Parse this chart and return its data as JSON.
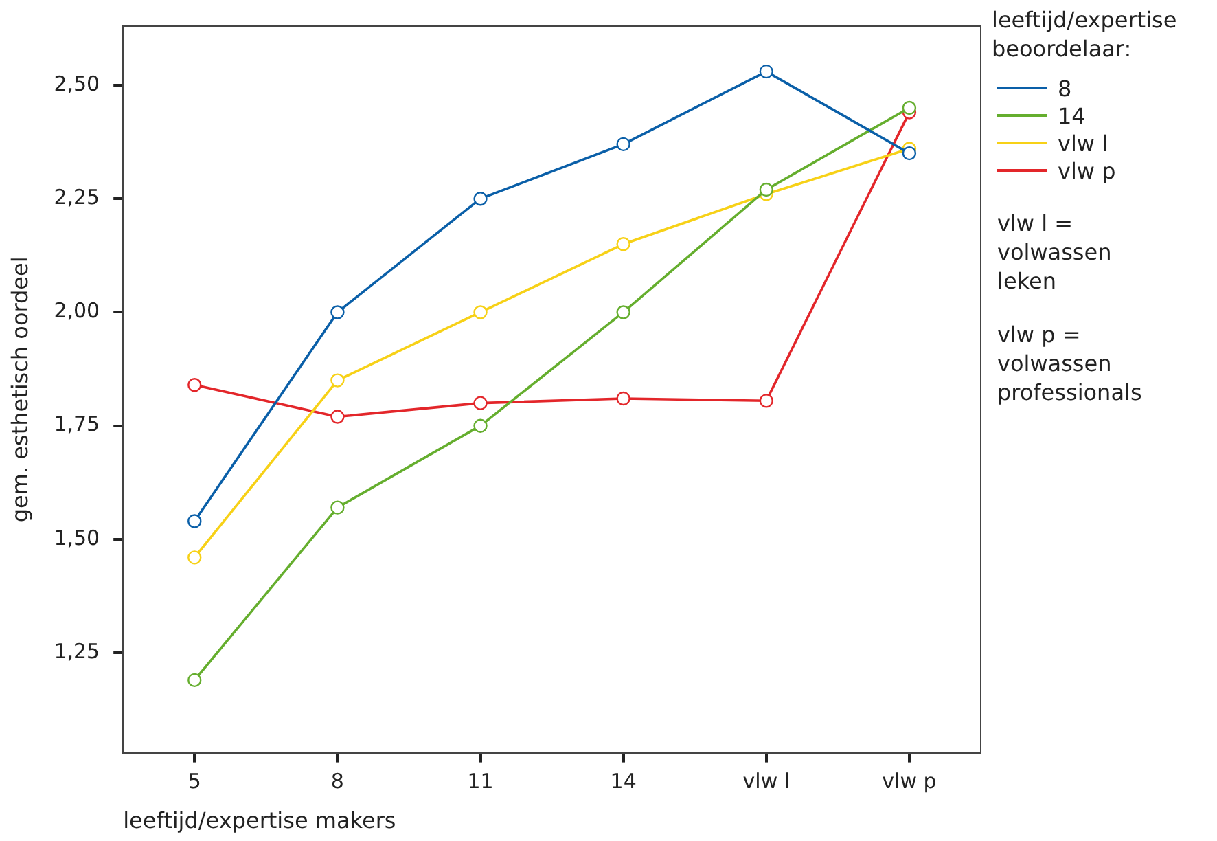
{
  "chart_data": {
    "type": "line",
    "xlabel": "leeftijd/expertise makers",
    "ylabel": "gem. esthetisch oordeel",
    "legend_title": "leeftijd/expertise beoordelaar:",
    "categories": [
      "5",
      "8",
      "11",
      "14",
      "vlw l",
      "vlw p"
    ],
    "series": [
      {
        "name": "8",
        "color": "#0a5fa8",
        "values": [
          1.54,
          2.0,
          2.25,
          2.37,
          2.53,
          2.35
        ]
      },
      {
        "name": "14",
        "color": "#65ae2e",
        "values": [
          1.19,
          1.57,
          1.75,
          2.0,
          2.27,
          2.45
        ]
      },
      {
        "name": "vlw l",
        "color": "#f7d117",
        "values": [
          1.46,
          1.85,
          2.0,
          2.15,
          2.26,
          2.36
        ]
      },
      {
        "name": "vlw p",
        "color": "#e3262a",
        "values": [
          1.84,
          1.77,
          1.8,
          1.81,
          1.805,
          2.44
        ]
      }
    ],
    "ylim": [
      1.03,
      2.63
    ],
    "yticks": [
      {
        "value": 1.25,
        "label": "1,25"
      },
      {
        "value": 1.5,
        "label": "1,50"
      },
      {
        "value": 1.75,
        "label": "1,75"
      },
      {
        "value": 2.0,
        "label": "2,00"
      },
      {
        "value": 2.25,
        "label": "2,25"
      },
      {
        "value": 2.5,
        "label": "2,50"
      }
    ],
    "annotations": [
      "vlw l = volwassen leken",
      "vlw p = volwassen professionals"
    ],
    "legend": "right",
    "grid": false,
    "marker": "circle",
    "line_style": "solid"
  }
}
